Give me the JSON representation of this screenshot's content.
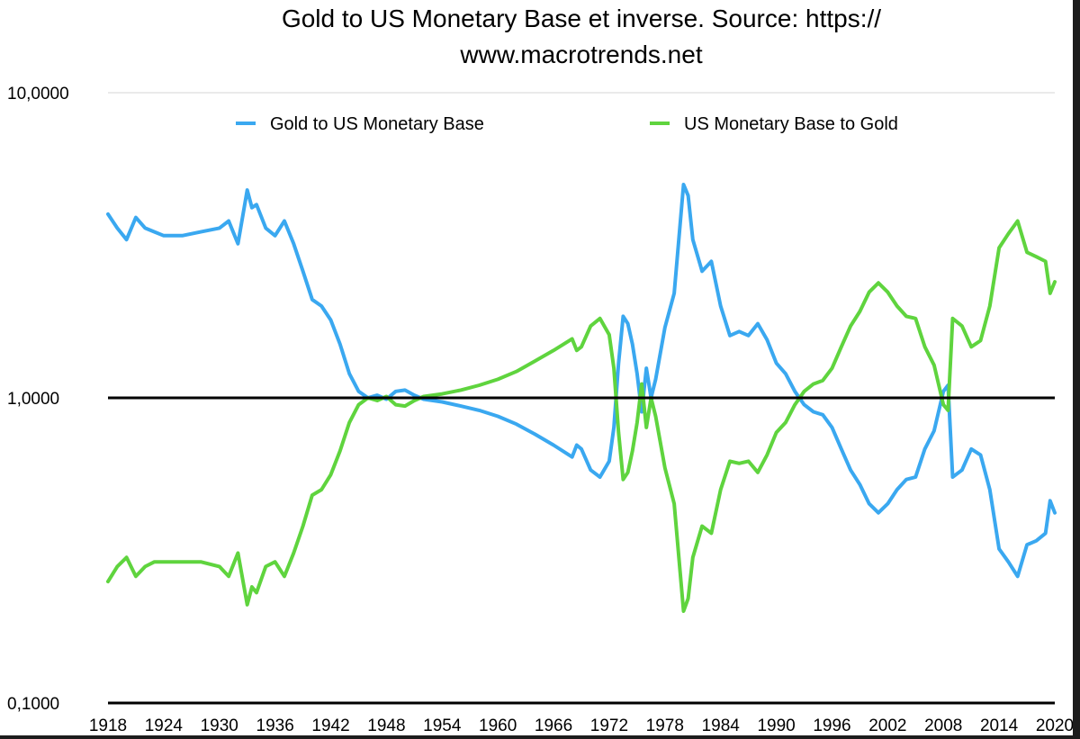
{
  "chart_data": {
    "type": "line",
    "title_lines": [
      "Gold to US Monetary Base et inverse. Source: https://",
      "www.macrotrends.net"
    ],
    "xlabel": "",
    "ylabel": "",
    "y_scale": "log",
    "ylim": [
      0.1,
      10
    ],
    "xlim": [
      1918,
      2020
    ],
    "y_ticks": [
      {
        "value": 10,
        "label": "10,0000"
      },
      {
        "value": 1,
        "label": "1,0000"
      },
      {
        "value": 0.1,
        "label": "0,1000"
      }
    ],
    "x_ticks": [
      1918,
      1924,
      1930,
      1936,
      1942,
      1948,
      1954,
      1960,
      1966,
      1972,
      1978,
      1984,
      1990,
      1996,
      2002,
      2008,
      2014,
      2020
    ],
    "reference_line": {
      "y": 1,
      "color": "#000000"
    },
    "legend_position": "top",
    "series": [
      {
        "name": "Gold to US Monetary Base",
        "color": "#3aa8f0",
        "x": [
          1918,
          1919,
          1920,
          1921,
          1922,
          1923,
          1924,
          1926,
          1928,
          1930,
          1931,
          1932,
          1933,
          1933.5,
          1934,
          1935,
          1936,
          1937,
          1938,
          1939,
          1940,
          1941,
          1942,
          1943,
          1944,
          1945,
          1946,
          1947,
          1948,
          1949,
          1950,
          1951,
          1952,
          1954,
          1956,
          1958,
          1960,
          1962,
          1964,
          1966,
          1968,
          1968.5,
          1969,
          1970,
          1971,
          1972,
          1972.5,
          1973,
          1973.5,
          1974,
          1974.5,
          1975,
          1975.5,
          1976,
          1976.5,
          1977,
          1978,
          1979,
          1980,
          1980.5,
          1981,
          1982,
          1983,
          1984,
          1985,
          1986,
          1987,
          1988,
          1989,
          1990,
          1991,
          1992,
          1993,
          1994,
          1995,
          1996,
          1997,
          1998,
          1999,
          2000,
          2001,
          2002,
          2003,
          2004,
          2005,
          2006,
          2007,
          2008,
          2008.5,
          2009,
          2010,
          2011,
          2012,
          2013,
          2014,
          2015,
          2016,
          2017,
          2018,
          2019,
          2019.5,
          2020
        ],
        "values": [
          4.0,
          3.6,
          3.3,
          3.9,
          3.6,
          3.5,
          3.4,
          3.4,
          3.5,
          3.6,
          3.8,
          3.2,
          4.8,
          4.2,
          4.3,
          3.6,
          3.4,
          3.8,
          3.2,
          2.6,
          2.1,
          2.0,
          1.8,
          1.5,
          1.2,
          1.05,
          1.0,
          1.02,
          0.99,
          1.05,
          1.06,
          1.02,
          0.99,
          0.97,
          0.94,
          0.91,
          0.87,
          0.82,
          0.76,
          0.7,
          0.64,
          0.7,
          0.68,
          0.58,
          0.55,
          0.62,
          0.8,
          1.3,
          1.85,
          1.75,
          1.5,
          1.2,
          0.9,
          1.25,
          1.0,
          1.15,
          1.7,
          2.2,
          5.0,
          4.6,
          3.3,
          2.6,
          2.8,
          2.0,
          1.6,
          1.65,
          1.6,
          1.75,
          1.55,
          1.3,
          1.2,
          1.05,
          0.95,
          0.9,
          0.88,
          0.8,
          0.68,
          0.58,
          0.52,
          0.45,
          0.42,
          0.45,
          0.5,
          0.54,
          0.55,
          0.68,
          0.78,
          1.05,
          1.1,
          0.55,
          0.58,
          0.68,
          0.65,
          0.5,
          0.32,
          0.29,
          0.26,
          0.33,
          0.34,
          0.36,
          0.46,
          0.42
        ]
      },
      {
        "name": "US Monetary Base to Gold",
        "color": "#5fd43e",
        "x": [
          1918,
          1919,
          1920,
          1921,
          1922,
          1923,
          1924,
          1926,
          1928,
          1930,
          1931,
          1932,
          1933,
          1933.5,
          1934,
          1935,
          1936,
          1937,
          1938,
          1939,
          1940,
          1941,
          1942,
          1943,
          1944,
          1945,
          1946,
          1947,
          1948,
          1949,
          1950,
          1951,
          1952,
          1954,
          1956,
          1958,
          1960,
          1962,
          1964,
          1966,
          1968,
          1968.5,
          1969,
          1970,
          1971,
          1972,
          1972.5,
          1973,
          1973.5,
          1974,
          1974.5,
          1975,
          1975.5,
          1976,
          1976.5,
          1977,
          1978,
          1979,
          1980,
          1980.5,
          1981,
          1982,
          1983,
          1984,
          1985,
          1986,
          1987,
          1988,
          1989,
          1990,
          1991,
          1992,
          1993,
          1994,
          1995,
          1996,
          1997,
          1998,
          1999,
          2000,
          2001,
          2002,
          2003,
          2004,
          2005,
          2006,
          2007,
          2008,
          2008.5,
          2009,
          2010,
          2011,
          2012,
          2013,
          2014,
          2015,
          2016,
          2017,
          2018,
          2019,
          2019.5,
          2020
        ],
        "values": [
          0.25,
          0.28,
          0.3,
          0.26,
          0.28,
          0.29,
          0.29,
          0.29,
          0.29,
          0.28,
          0.26,
          0.31,
          0.21,
          0.24,
          0.23,
          0.28,
          0.29,
          0.26,
          0.31,
          0.38,
          0.48,
          0.5,
          0.56,
          0.67,
          0.83,
          0.95,
          1.0,
          0.98,
          1.01,
          0.95,
          0.94,
          0.98,
          1.01,
          1.03,
          1.06,
          1.1,
          1.15,
          1.22,
          1.32,
          1.43,
          1.56,
          1.43,
          1.47,
          1.72,
          1.82,
          1.61,
          1.25,
          0.77,
          0.54,
          0.57,
          0.67,
          0.83,
          1.11,
          0.8,
          1.0,
          0.87,
          0.59,
          0.45,
          0.2,
          0.22,
          0.3,
          0.38,
          0.36,
          0.5,
          0.62,
          0.61,
          0.62,
          0.57,
          0.65,
          0.77,
          0.83,
          0.95,
          1.05,
          1.11,
          1.14,
          1.25,
          1.47,
          1.72,
          1.92,
          2.22,
          2.38,
          2.22,
          2.0,
          1.85,
          1.82,
          1.47,
          1.28,
          0.95,
          0.91,
          1.82,
          1.72,
          1.47,
          1.54,
          2.0,
          3.1,
          3.45,
          3.8,
          3.0,
          2.9,
          2.8,
          2.2,
          2.4
        ]
      }
    ]
  }
}
